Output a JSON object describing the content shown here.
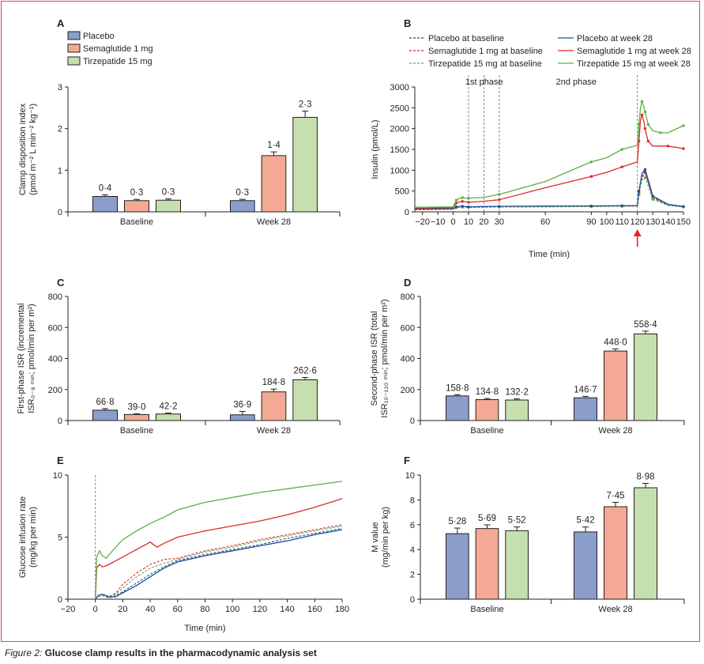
{
  "figure": {
    "caption_figure": "Figure 2:",
    "caption_text": " Glucose clamp results in the pharmacodynamic analysis set",
    "colors": {
      "placebo": "#8a9dcb",
      "semaglutide": "#f3a993",
      "tirzepatide": "#c5dfae",
      "placebo_line": "#1f4e96",
      "semaglutide_line": "#dc2a26",
      "tirzepatide_line": "#5faf47",
      "frame": "#d7437a",
      "arrow": "#e32424"
    }
  },
  "chart_data": [
    {
      "id": "A",
      "letter": "A",
      "type": "bar",
      "ylabel": [
        "Clamp disposition index",
        "(pmol m⁻² L min⁻² kg⁻¹)"
      ],
      "ylim": [
        0,
        3
      ],
      "yticks": [
        0,
        1,
        2,
        3
      ],
      "ytick_labels": [
        "0",
        "1",
        "2",
        "3"
      ],
      "categories": [
        "Baseline",
        "Week 28"
      ],
      "legend": [
        "Placebo",
        "Semaglutide 1 mg",
        "Tirzepatide 15 mg"
      ],
      "series": [
        {
          "name": "Placebo",
          "values": [
            0.37,
            0.27
          ],
          "err": [
            0.04,
            0.03
          ],
          "labels": [
            "0·4",
            "0·3"
          ]
        },
        {
          "name": "Semaglutide 1 mg",
          "values": [
            0.27,
            1.35
          ],
          "err": [
            0.03,
            0.09
          ],
          "labels": [
            "0·3",
            "1·4"
          ]
        },
        {
          "name": "Tirzepatide 15 mg",
          "values": [
            0.28,
            2.27
          ],
          "err": [
            0.03,
            0.15
          ],
          "labels": [
            "0·3",
            "2·3"
          ]
        }
      ]
    },
    {
      "id": "B",
      "letter": "B",
      "type": "line",
      "ylabel": [
        "Insulin (pmol/L)"
      ],
      "xlabel": "Time (min)",
      "xlim": [
        -25,
        150
      ],
      "ylim": [
        0,
        3000
      ],
      "xticks": [
        -20,
        -10,
        0,
        10,
        20,
        30,
        60,
        90,
        100,
        110,
        120,
        130,
        140,
        150
      ],
      "xtick_labels": [
        "−20",
        "−10",
        "0",
        "10",
        "20",
        "30",
        "60",
        "90",
        "100",
        "110",
        "120",
        "130",
        "140",
        "150"
      ],
      "yticks": [
        0,
        500,
        1000,
        1500,
        2000,
        2500,
        3000
      ],
      "ytick_labels": [
        "0",
        "500",
        "1000",
        "1500",
        "2000",
        "2500",
        "3000"
      ],
      "phase_lines": [
        10,
        20,
        30,
        120
      ],
      "phase_labels": [
        "1st phase",
        "2nd phase"
      ],
      "arrow_at": 120,
      "series": [
        {
          "name": "Placebo at baseline",
          "color_key": "placebo_line",
          "dashed": true,
          "x": [
            -25,
            -20,
            -10,
            0,
            2,
            4,
            6,
            8,
            10,
            20,
            30,
            60,
            90,
            100,
            110,
            120,
            121,
            123,
            125,
            128,
            130,
            140,
            150
          ],
          "y": [
            60,
            60,
            60,
            65,
            110,
            120,
            125,
            118,
            110,
            118,
            125,
            130,
            135,
            138,
            140,
            145,
            450,
            850,
            960,
            600,
            350,
            170,
            125
          ]
        },
        {
          "name": "Semaglutide 1 mg at baseline",
          "color_key": "semaglutide_line",
          "dashed": true,
          "x": [
            -25,
            -20,
            -10,
            0,
            2,
            4,
            6,
            8,
            10,
            20,
            30,
            60,
            90,
            100,
            110,
            120,
            121,
            123,
            125,
            128,
            130,
            140,
            150
          ],
          "y": [
            50,
            50,
            55,
            60,
            100,
            110,
            115,
            110,
            105,
            110,
            115,
            120,
            125,
            130,
            132,
            135,
            420,
            820,
            940,
            580,
            330,
            160,
            120
          ]
        },
        {
          "name": "Tirzepatide 15 mg at baseline",
          "color_key": "tirzepatide_line",
          "dashed": true,
          "x": [
            -25,
            -20,
            -10,
            0,
            2,
            4,
            6,
            8,
            10,
            20,
            30,
            60,
            90,
            100,
            110,
            120,
            121,
            123,
            125,
            128,
            130,
            140,
            150
          ],
          "y": [
            55,
            55,
            58,
            62,
            105,
            115,
            120,
            112,
            108,
            112,
            118,
            122,
            128,
            132,
            134,
            138,
            430,
            760,
            820,
            520,
            300,
            150,
            115
          ]
        },
        {
          "name": "Placebo at week 28",
          "color_key": "placebo_line",
          "dashed": false,
          "x": [
            -25,
            -20,
            -10,
            0,
            2,
            4,
            6,
            8,
            10,
            20,
            30,
            60,
            90,
            100,
            110,
            120,
            121,
            123,
            125,
            128,
            130,
            140,
            150
          ],
          "y": [
            70,
            70,
            72,
            75,
            120,
            130,
            135,
            128,
            122,
            128,
            132,
            138,
            142,
            145,
            148,
            150,
            500,
            920,
            1020,
            650,
            380,
            180,
            130
          ]
        },
        {
          "name": "Semaglutide 1 mg at week 28",
          "color_key": "semaglutide_line",
          "dashed": false,
          "x": [
            -25,
            -20,
            -10,
            0,
            2,
            4,
            6,
            8,
            10,
            20,
            30,
            60,
            90,
            100,
            110,
            120,
            121,
            122,
            123,
            124,
            125,
            126,
            127,
            130,
            140,
            150
          ],
          "y": [
            90,
            90,
            95,
            100,
            210,
            240,
            250,
            240,
            230,
            255,
            290,
            580,
            850,
            950,
            1080,
            1200,
            1700,
            2200,
            2330,
            2200,
            2000,
            1830,
            1700,
            1580,
            1580,
            1520
          ]
        },
        {
          "name": "Tirzepatide 15 mg at week 28",
          "color_key": "tirzepatide_line",
          "dashed": false,
          "x": [
            -25,
            -20,
            -10,
            0,
            2,
            4,
            6,
            8,
            10,
            20,
            30,
            60,
            90,
            100,
            110,
            120,
            121,
            122,
            123,
            124,
            125,
            126,
            127,
            130,
            135,
            140,
            150
          ],
          "y": [
            110,
            110,
            115,
            120,
            280,
            320,
            340,
            335,
            330,
            350,
            420,
            730,
            1200,
            1300,
            1500,
            1600,
            2100,
            2500,
            2650,
            2550,
            2400,
            2250,
            2100,
            1950,
            1900,
            1900,
            2070
          ]
        }
      ]
    },
    {
      "id": "C",
      "letter": "C",
      "type": "bar",
      "ylabel": [
        "First-phase ISR (incremental",
        "ISR₀₋₈ ₘᵢₙ; pmol/min per m²)"
      ],
      "ylim": [
        0,
        800
      ],
      "yticks": [
        0,
        200,
        400,
        600,
        800
      ],
      "ytick_labels": [
        "0",
        "200",
        "400",
        "600",
        "800"
      ],
      "categories": [
        "Baseline",
        "Week 28"
      ],
      "series": [
        {
          "name": "Placebo",
          "values": [
            66.8,
            36.9
          ],
          "err": [
            10,
            22
          ],
          "labels": [
            "66·8",
            "36·9"
          ]
        },
        {
          "name": "Semaglutide 1 mg",
          "values": [
            39.0,
            184.8
          ],
          "err": [
            5,
            18
          ],
          "labels": [
            "39·0",
            "184·8"
          ]
        },
        {
          "name": "Tirzepatide 15 mg",
          "values": [
            42.2,
            262.6
          ],
          "err": [
            6,
            15
          ],
          "labels": [
            "42·2",
            "262·6"
          ]
        }
      ]
    },
    {
      "id": "D",
      "letter": "D",
      "type": "bar",
      "ylabel": [
        "Second-phase ISR (total",
        "ISR₁₀₋₁₂₀ ₘᵢₙ; pmol/min per m²)"
      ],
      "ylim": [
        0,
        800
      ],
      "yticks": [
        0,
        200,
        400,
        600,
        800
      ],
      "ytick_labels": [
        "0",
        "200",
        "400",
        "600",
        "800"
      ],
      "categories": [
        "Baseline",
        "Week 28"
      ],
      "series": [
        {
          "name": "Placebo",
          "values": [
            158.8,
            146.7
          ],
          "err": [
            8,
            9
          ],
          "labels": [
            "158·8",
            "146·7"
          ]
        },
        {
          "name": "Semaglutide 1 mg",
          "values": [
            134.8,
            448.0
          ],
          "err": [
            7,
            14
          ],
          "labels": [
            "134·8",
            "448·0"
          ]
        },
        {
          "name": "Tirzepatide 15 mg",
          "values": [
            132.2,
            558.4
          ],
          "err": [
            7,
            18
          ],
          "labels": [
            "132·2",
            "558·4"
          ]
        }
      ]
    },
    {
      "id": "E",
      "letter": "E",
      "type": "line",
      "ylabel": [
        "Glucose infusion rate",
        "(mg/kg per min)"
      ],
      "xlabel": "Time (min)",
      "xlim": [
        -20,
        180
      ],
      "ylim": [
        0,
        10
      ],
      "xticks": [
        -20,
        0,
        20,
        40,
        60,
        80,
        100,
        120,
        140,
        160,
        180
      ],
      "xtick_labels": [
        "−20",
        "0",
        "20",
        "40",
        "60",
        "80",
        "100",
        "120",
        "140",
        "160",
        "180"
      ],
      "yticks": [
        0,
        5,
        10
      ],
      "ytick_labels": [
        "0",
        "5",
        "10"
      ],
      "vline_at": 0,
      "series": [
        {
          "name": "Placebo at baseline",
          "color_key": "placebo_line",
          "dashed": true,
          "x": [
            0,
            2,
            5,
            10,
            15,
            20,
            30,
            40,
            50,
            60,
            80,
            100,
            120,
            140,
            160,
            180
          ],
          "y": [
            0,
            0.2,
            0.3,
            0.1,
            0.3,
            0.6,
            1.3,
            2.0,
            2.6,
            3.1,
            3.6,
            4.0,
            4.4,
            4.9,
            5.3,
            5.7
          ]
        },
        {
          "name": "Semaglutide 1 mg at baseline",
          "color_key": "semaglutide_line",
          "dashed": true,
          "x": [
            0,
            2,
            5,
            10,
            15,
            20,
            30,
            40,
            50,
            60,
            80,
            100,
            120,
            140,
            160,
            180
          ],
          "y": [
            0,
            0.2,
            0.3,
            0.2,
            0.5,
            1.2,
            2.1,
            2.8,
            3.2,
            3.3,
            3.9,
            4.3,
            4.8,
            5.2,
            5.6,
            6.0
          ]
        },
        {
          "name": "Tirzepatide 15 mg at baseline",
          "color_key": "tirzepatide_line",
          "dashed": true,
          "x": [
            0,
            2,
            5,
            10,
            15,
            20,
            30,
            40,
            50,
            60,
            80,
            100,
            120,
            140,
            160,
            180
          ],
          "y": [
            0,
            0.2,
            0.3,
            0.2,
            0.4,
            0.9,
            1.8,
            2.5,
            2.9,
            3.2,
            3.8,
            4.2,
            4.7,
            5.1,
            5.5,
            5.9
          ]
        },
        {
          "name": "Placebo at week 28",
          "color_key": "placebo_line",
          "dashed": false,
          "x": [
            0,
            2,
            5,
            10,
            15,
            20,
            30,
            40,
            50,
            60,
            80,
            100,
            120,
            140,
            160,
            180
          ],
          "y": [
            0,
            0.3,
            0.4,
            0.2,
            0.2,
            0.5,
            1.1,
            1.8,
            2.5,
            3.0,
            3.5,
            3.9,
            4.3,
            4.7,
            5.2,
            5.6
          ]
        },
        {
          "name": "Semaglutide 1 mg at week 28",
          "color_key": "semaglutide_line",
          "dashed": false,
          "x": [
            0,
            1,
            3,
            5,
            8,
            10,
            15,
            20,
            30,
            40,
            45,
            50,
            60,
            80,
            100,
            120,
            140,
            160,
            180
          ],
          "y": [
            0,
            2.5,
            2.8,
            2.6,
            2.7,
            2.8,
            3.1,
            3.4,
            4.0,
            4.6,
            4.2,
            4.5,
            5.0,
            5.5,
            5.9,
            6.3,
            6.8,
            7.4,
            8.1
          ]
        },
        {
          "name": "Tirzepatide 15 mg at week 28",
          "color_key": "tirzepatide_line",
          "dashed": false,
          "x": [
            0,
            1,
            3,
            5,
            8,
            10,
            15,
            20,
            30,
            40,
            50,
            60,
            80,
            100,
            120,
            140,
            160,
            180
          ],
          "y": [
            0,
            3.4,
            3.9,
            3.5,
            3.3,
            3.6,
            4.2,
            4.8,
            5.5,
            6.1,
            6.6,
            7.2,
            7.8,
            8.2,
            8.6,
            8.9,
            9.2,
            9.5
          ]
        }
      ]
    },
    {
      "id": "F",
      "letter": "F",
      "type": "bar",
      "ylabel": [
        "M value",
        "(mg/min per kg)"
      ],
      "ylim": [
        0,
        10
      ],
      "yticks": [
        0,
        2,
        4,
        6,
        8,
        10
      ],
      "ytick_labels": [
        "0",
        "2",
        "4",
        "6",
        "8",
        "10"
      ],
      "categories": [
        "Baseline",
        "Week 28"
      ],
      "series": [
        {
          "name": "Placebo",
          "values": [
            5.28,
            5.42
          ],
          "err": [
            0.45,
            0.4
          ],
          "labels": [
            "5·28",
            "5·42"
          ]
        },
        {
          "name": "Semaglutide 1 mg",
          "values": [
            5.69,
            7.45
          ],
          "err": [
            0.3,
            0.35
          ],
          "labels": [
            "5·69",
            "7·45"
          ]
        },
        {
          "name": "Tirzepatide 15 mg",
          "values": [
            5.52,
            8.98
          ],
          "err": [
            0.3,
            0.35
          ],
          "labels": [
            "5·52",
            "8·98"
          ]
        }
      ]
    }
  ],
  "legend_b": [
    {
      "label": "Placebo at baseline",
      "color_key": "placebo_line",
      "dashed": true
    },
    {
      "label": "Placebo at week 28",
      "color_key": "placebo_line",
      "dashed": false
    },
    {
      "label": "Semaglutide 1 mg at baseline",
      "color_key": "semaglutide_line",
      "dashed": true
    },
    {
      "label": "Semaglutide 1 mg at week 28",
      "color_key": "semaglutide_line",
      "dashed": false
    },
    {
      "label": "Tirzepatide 15 mg at baseline",
      "color_key": "tirzepatide_line",
      "dashed": true
    },
    {
      "label": "Tirzepatide 15 mg at week 28",
      "color_key": "tirzepatide_line",
      "dashed": false
    }
  ]
}
